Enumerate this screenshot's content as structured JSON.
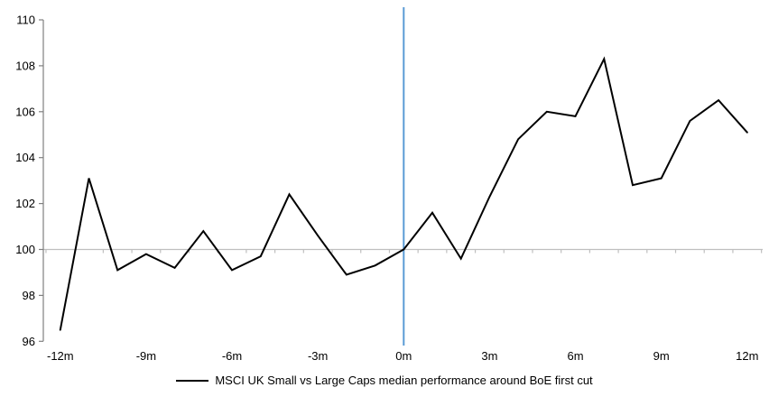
{
  "chart_data": {
    "type": "line",
    "title": "",
    "legend": "MSCI UK Small vs Large Caps median performance around BoE first cut",
    "x": [
      -12,
      -11,
      -10,
      -9,
      -8,
      -7,
      -6,
      -5,
      -4,
      -3,
      -2,
      -1,
      0,
      1,
      2,
      3,
      4,
      5,
      6,
      7,
      8,
      9,
      10,
      11,
      12
    ],
    "series": [
      {
        "name": "MSCI UK Small vs Large Caps median performance around BoE first cut",
        "values": [
          96.5,
          103.1,
          99.1,
          99.8,
          99.2,
          100.8,
          99.1,
          99.7,
          102.4,
          100.6,
          98.9,
          99.3,
          100.0,
          101.6,
          99.6,
          102.3,
          104.8,
          106.0,
          105.8,
          108.3,
          102.8,
          103.1,
          105.6,
          106.5,
          105.1
        ]
      }
    ],
    "xlabel": "",
    "ylabel": "",
    "ylim": [
      96,
      110
    ],
    "y_ticks": [
      96,
      98,
      100,
      102,
      104,
      106,
      108,
      110
    ],
    "x_tick_months": [
      -12,
      -9,
      -6,
      -3,
      0,
      3,
      6,
      9,
      12
    ],
    "x_tick_labels": [
      "-12m",
      "-9m",
      "-6m",
      "-3m",
      "0m",
      "3m",
      "6m",
      "9m",
      "12m"
    ],
    "baseline_value": 100,
    "event_line_month": 0,
    "grid": "baseline-only",
    "legend_position": "bottom-center",
    "colors": {
      "series_line": "#000000",
      "event_line": "#5B9BD5",
      "baseline_line": "#BFBFBF",
      "axis_line": "#808080",
      "tick_text": "#000000"
    }
  }
}
